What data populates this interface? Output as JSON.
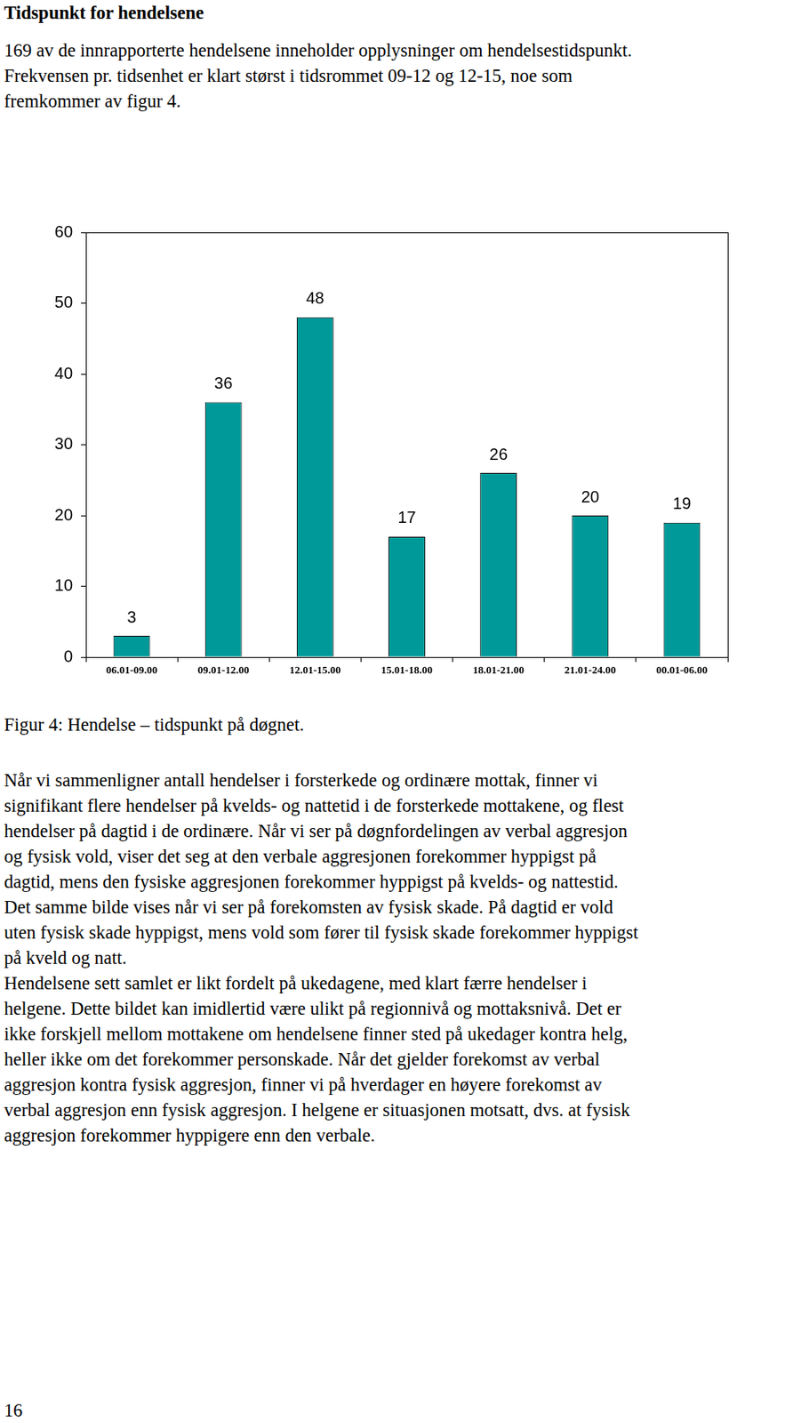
{
  "heading": "Tidspunkt for hendelsene",
  "intro": [
    "169 av de innrapporterte hendelsene inneholder opplysninger om hendelsestidspunkt.",
    "Frekvensen pr. tidsenhet er klart størst i tidsrommet 09-12 og 12-15, noe som",
    "fremkommer av figur 4."
  ],
  "chart_data": {
    "type": "bar",
    "categories": [
      "06.01-09.00",
      "09.01-12.00",
      "12.01-15.00",
      "15.01-18.00",
      "18.01-21.00",
      "21.01-24.00",
      "00.01-06.00"
    ],
    "values": [
      3,
      36,
      48,
      17,
      26,
      20,
      19
    ],
    "color": "#009999",
    "ylim": [
      0,
      60
    ],
    "yticks": [
      0,
      10,
      20,
      30,
      40,
      50,
      60
    ],
    "grid": false,
    "data_labels": true
  },
  "caption": "Figur 4: Hendelse – tidspunkt på døgnet.",
  "body": [
    "Når vi sammenligner antall hendelser i forsterkede og ordinære mottak, finner vi",
    "signifikant flere hendelser på kvelds- og nattetid i de forsterkede mottakene, og flest",
    "hendelser på dagtid i de ordinære. Når vi ser på døgnfordelingen av verbal aggresjon",
    "og fysisk vold, viser det seg at den verbale aggresjonen forekommer hyppigst på",
    "dagtid, mens den fysiske aggresjonen forekommer hyppigst på kvelds- og nattestid.",
    "Det samme bilde vises når vi ser på forekomsten av fysisk skade. På dagtid er vold",
    "uten fysisk skade hyppigst, mens vold som fører til fysisk skade forekommer hyppigst",
    "på kveld og natt.",
    "Hendelsene sett samlet er likt fordelt på ukedagene, med klart færre hendelser i",
    "helgene. Dette bildet kan imidlertid være ulikt på regionnivå og mottaksnivå. Det er",
    "ikke forskjell mellom mottakene om hendelsene finner sted på ukedager kontra helg,",
    "heller ikke om det forekommer personskade. Når det gjelder forekomst av verbal",
    "aggresjon kontra fysisk aggresjon, finner vi på hverdager en høyere forekomst av",
    "verbal aggresjon enn fysisk aggresjon. I helgene er situasjonen motsatt, dvs. at fysisk",
    "aggresjon forekommer hyppigere enn den verbale."
  ],
  "page_number": "16"
}
